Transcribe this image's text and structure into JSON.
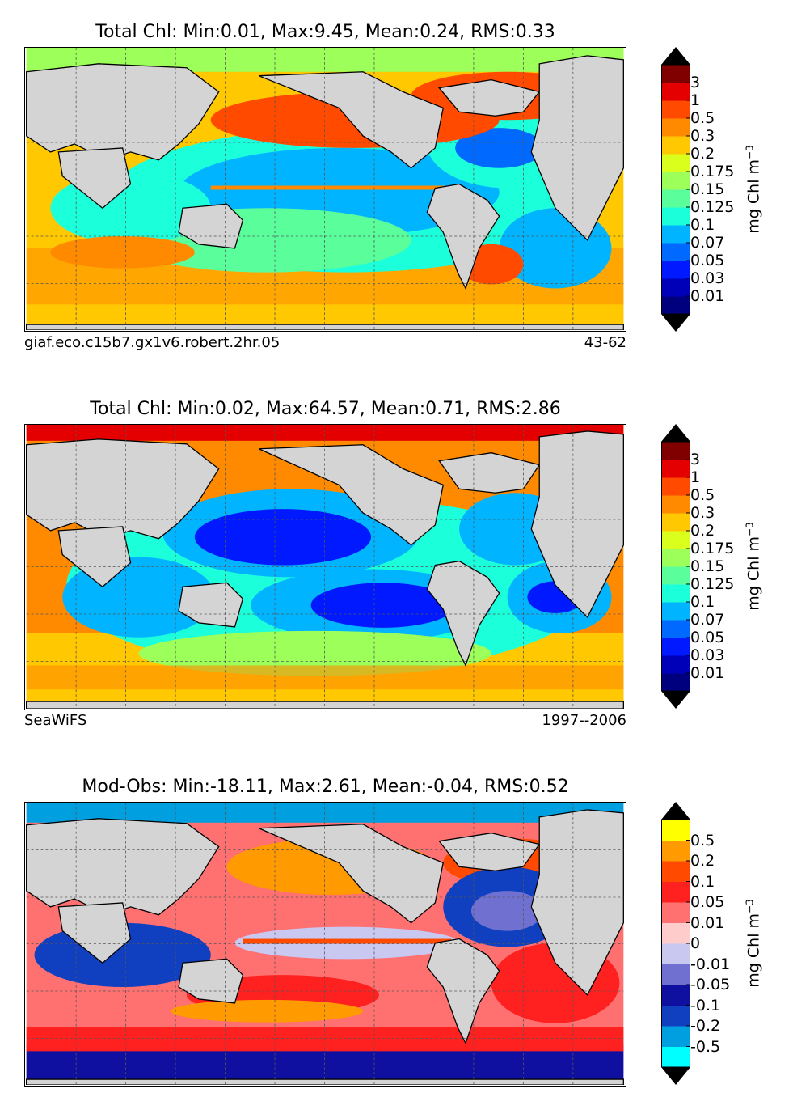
{
  "colors": {
    "land": "#d4d4d4",
    "chl": [
      "#00007f",
      "#0000b8",
      "#0019ff",
      "#0069ff",
      "#00b4ff",
      "#1cffdb",
      "#5aff9c",
      "#9cff5a",
      "#dbff1c",
      "#ffc800",
      "#ff8a00",
      "#ff4a00",
      "#e40000",
      "#800000"
    ],
    "diff": [
      "#00ffff",
      "#00a0e0",
      "#1040c0",
      "#1010a0",
      "#7070d0",
      "#c8c8f0",
      "#ffcccc",
      "#ff7070",
      "#ff2020",
      "#ff4a00",
      "#ff9a00",
      "#ffff00"
    ]
  },
  "panels": [
    {
      "title": "Total Chl: Min:0.01, Max:9.45, Mean:0.24, RMS:0.33",
      "caption_left": "giaf.eco.c15b7.gx1v6.robert.2hr.05",
      "caption_right": "43-62",
      "colorbar": {
        "ticks": [
          "3",
          "1",
          "0.5",
          "0.3",
          "0.2",
          "0.175",
          "0.15",
          "0.125",
          "0.1",
          "0.07",
          "0.05",
          "0.03",
          "0.01"
        ],
        "unit": "mg Chl m",
        "unit_exp": "−3"
      }
    },
    {
      "title": "Total Chl: Min:0.02, Max:64.57, Mean:0.71, RMS:2.86",
      "caption_left": "SeaWiFS",
      "caption_right": "1997--2006",
      "colorbar": {
        "ticks": [
          "3",
          "1",
          "0.5",
          "0.3",
          "0.2",
          "0.175",
          "0.15",
          "0.125",
          "0.1",
          "0.07",
          "0.05",
          "0.03",
          "0.01"
        ],
        "unit": "mg Chl m",
        "unit_exp": "−3"
      }
    },
    {
      "title": "Mod-Obs: Min:-18.11, Max:2.61, Mean:-0.04, RMS:0.52",
      "caption_left": "",
      "caption_right": "",
      "colorbar": {
        "ticks": [
          "0.5",
          "0.2",
          "0.1",
          "0.05",
          "0.01",
          "0",
          "-0.01",
          "-0.05",
          "-0.1",
          "-0.2",
          "-0.5"
        ],
        "unit": "mg Chl m",
        "unit_exp": "−3"
      }
    }
  ],
  "chart_data": [
    {
      "type": "heatmap",
      "title": "Total Chl: Min:0.01, Max:9.45, Mean:0.24, RMS:0.33",
      "source": "giaf.eco.c15b7.gx1v6.robert.2hr.05",
      "period": "43-62",
      "stats": {
        "min": 0.01,
        "max": 9.45,
        "mean": 0.24,
        "rms": 0.33
      },
      "colorbar_levels": [
        3,
        1,
        0.5,
        0.3,
        0.2,
        0.175,
        0.15,
        0.125,
        0.1,
        0.07,
        0.05,
        0.03,
        0.01
      ],
      "unit": "mg Chl m^-3"
    },
    {
      "type": "heatmap",
      "title": "Total Chl: Min:0.02, Max:64.57, Mean:0.71, RMS:2.86",
      "source": "SeaWiFS",
      "period": "1997--2006",
      "stats": {
        "min": 0.02,
        "max": 64.57,
        "mean": 0.71,
        "rms": 2.86
      },
      "colorbar_levels": [
        3,
        1,
        0.5,
        0.3,
        0.2,
        0.175,
        0.15,
        0.125,
        0.1,
        0.07,
        0.05,
        0.03,
        0.01
      ],
      "unit": "mg Chl m^-3"
    },
    {
      "type": "heatmap",
      "title": "Mod-Obs: Min:-18.11, Max:2.61, Mean:-0.04, RMS:0.52",
      "stats": {
        "min": -18.11,
        "max": 2.61,
        "mean": -0.04,
        "rms": 0.52
      },
      "colorbar_levels": [
        0.5,
        0.2,
        0.1,
        0.05,
        0.01,
        0,
        -0.01,
        -0.05,
        -0.1,
        -0.2,
        -0.5
      ],
      "unit": "mg Chl m^-3"
    }
  ]
}
